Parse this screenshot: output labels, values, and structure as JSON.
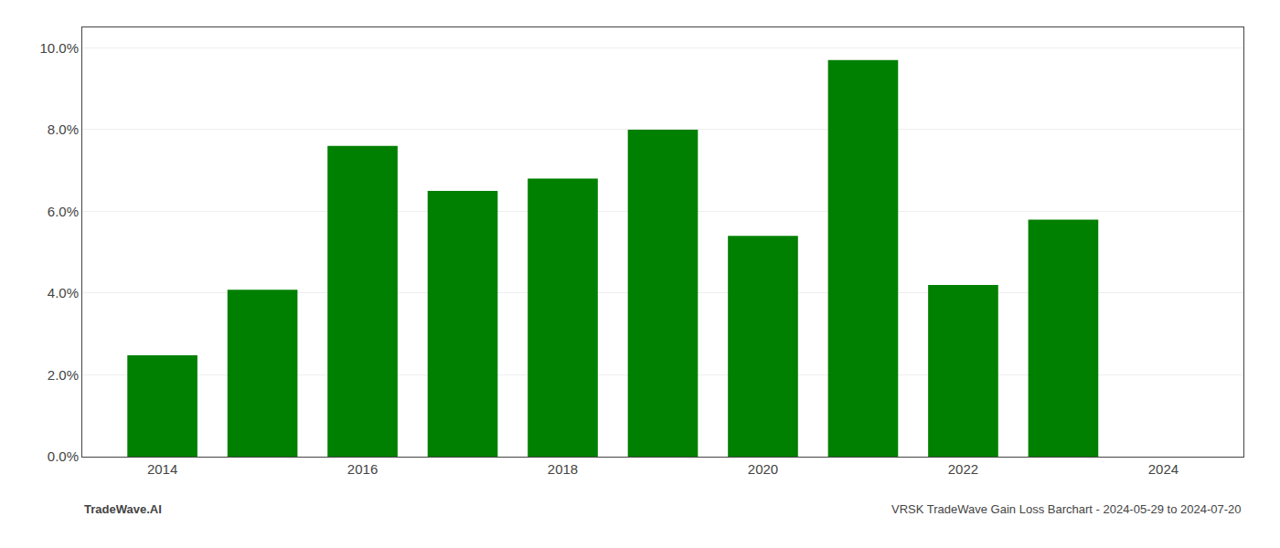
{
  "chart_data": {
    "type": "bar",
    "x": [
      2014,
      2015,
      2016,
      2017,
      2018,
      2019,
      2020,
      2021,
      2022,
      2023
    ],
    "values": [
      0.0248,
      0.0408,
      0.076,
      0.065,
      0.068,
      0.08,
      0.054,
      0.097,
      0.042,
      0.058
    ],
    "color": "#008000",
    "xlim": [
      2013.2,
      2024.8
    ],
    "ylim": [
      0.0,
      0.105
    ],
    "xticks": [
      2014,
      2016,
      2018,
      2020,
      2022,
      2024
    ],
    "yticks": [
      {
        "value": 0.0,
        "label": "0.0%"
      },
      {
        "value": 0.02,
        "label": "2.0%"
      },
      {
        "value": 0.04,
        "label": "4.0%"
      },
      {
        "value": 0.06,
        "label": "6.0%"
      },
      {
        "value": 0.08,
        "label": "8.0%"
      },
      {
        "value": 0.1,
        "label": "10.0%"
      }
    ],
    "grid": true,
    "annotations": [
      "TradeWave.AI",
      "VRSK TradeWave Gain Loss Barchart - 2024-05-29 to 2024-07-20"
    ]
  }
}
